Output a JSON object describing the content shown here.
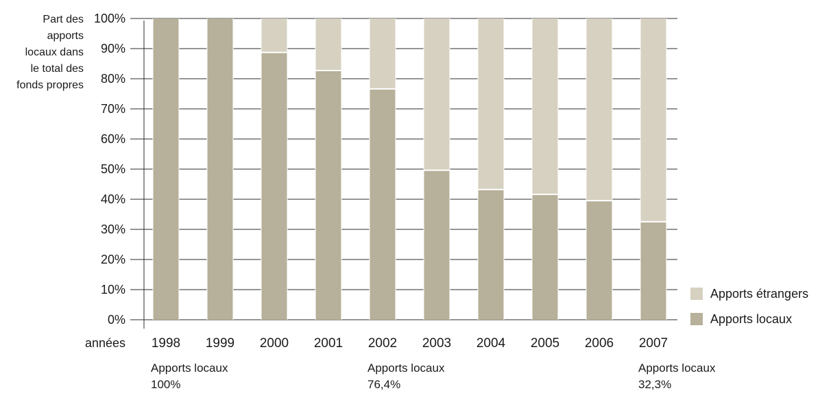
{
  "chart_data": {
    "type": "bar",
    "stacked": true,
    "ylabel_lines": [
      "Part des",
      "apports",
      "locaux dans",
      "le total des",
      "fonds propres"
    ],
    "xlabel": "années",
    "categories": [
      "1998",
      "1999",
      "2000",
      "2001",
      "2002",
      "2003",
      "2004",
      "2005",
      "2006",
      "2007"
    ],
    "yticks": [
      "0%",
      "10%",
      "20%",
      "30%",
      "40%",
      "50%",
      "60%",
      "70%",
      "80%",
      "90%",
      "100%"
    ],
    "ylim": [
      0,
      100
    ],
    "grid": true,
    "legend_position": "bottom-right",
    "series": [
      {
        "name": "Apports locaux",
        "color": "#b7b09a",
        "values": [
          100,
          100,
          88.5,
          82.5,
          76.4,
          49.4,
          43,
          41.4,
          39.3,
          32.3
        ]
      },
      {
        "name": "Apports étrangers",
        "color": "#d6d1c0",
        "values": [
          0,
          0,
          11.5,
          17.5,
          23.6,
          50.6,
          57,
          58.6,
          60.7,
          67.7
        ]
      }
    ],
    "annotations": [
      {
        "category": "1998",
        "line1": "Apports locaux",
        "line2": "100%"
      },
      {
        "category": "2002",
        "line1": "Apports locaux",
        "line2": "76,4%"
      },
      {
        "category": "2007",
        "line1": "Apports locaux",
        "line2": "32,3%"
      }
    ]
  }
}
